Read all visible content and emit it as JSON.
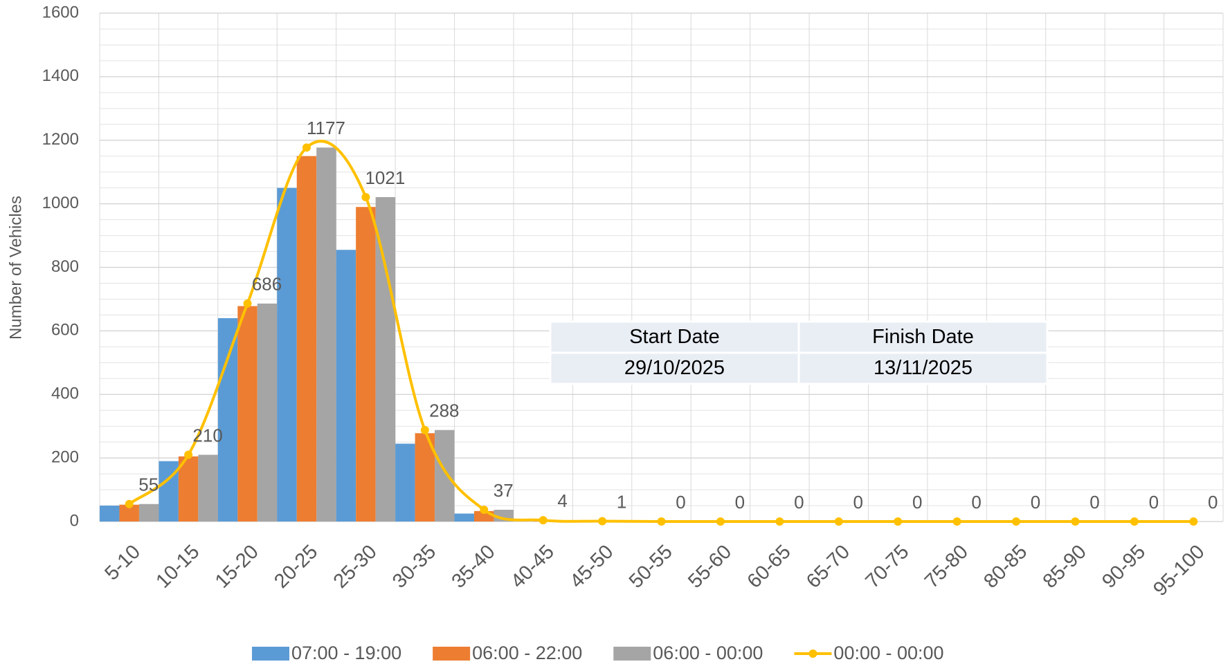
{
  "chart_data": {
    "type": "bar_line",
    "y_label": "Number of Vehicles",
    "categories": [
      "5-10",
      "10-15",
      "15-20",
      "20-25",
      "25-30",
      "30-35",
      "35-40",
      "40-45",
      "45-50",
      "50-55",
      "55-60",
      "60-65",
      "65-70",
      "70-75",
      "75-80",
      "80-85",
      "85-90",
      "90-95",
      "95-100"
    ],
    "series": [
      {
        "name": "07:00 - 19:00",
        "color": "#5b9bd5",
        "type": "bar",
        "values": [
          50,
          190,
          640,
          1050,
          855,
          245,
          25,
          0,
          0,
          0,
          0,
          0,
          0,
          0,
          0,
          0,
          0,
          0,
          0
        ]
      },
      {
        "name": "06:00 - 22:00",
        "color": "#ed7d31",
        "type": "bar",
        "values": [
          53,
          205,
          678,
          1150,
          990,
          278,
          33,
          3,
          1,
          0,
          0,
          0,
          0,
          0,
          0,
          0,
          0,
          0,
          0
        ]
      },
      {
        "name": "06:00 - 00:00",
        "color": "#a5a5a5",
        "type": "bar",
        "values": [
          55,
          210,
          686,
          1177,
          1021,
          288,
          37,
          4,
          1,
          0,
          0,
          0,
          0,
          0,
          0,
          0,
          0,
          0,
          0
        ]
      },
      {
        "name": "00:00 - 00:00",
        "color": "#ffc000",
        "type": "line",
        "values": [
          55,
          210,
          686,
          1177,
          1021,
          288,
          37,
          4,
          1,
          0,
          0,
          0,
          0,
          0,
          0,
          0,
          0,
          0,
          0
        ]
      }
    ],
    "ylim": [
      0,
      1600
    ],
    "yticks": [
      0,
      200,
      400,
      600,
      800,
      1000,
      1200,
      1400,
      1600
    ],
    "grid": true,
    "legend": "bottom",
    "info_table": {
      "headers": [
        "Start Date",
        "Finish Date"
      ],
      "values": [
        "29/10/2025",
        "13/11/2025"
      ]
    }
  }
}
